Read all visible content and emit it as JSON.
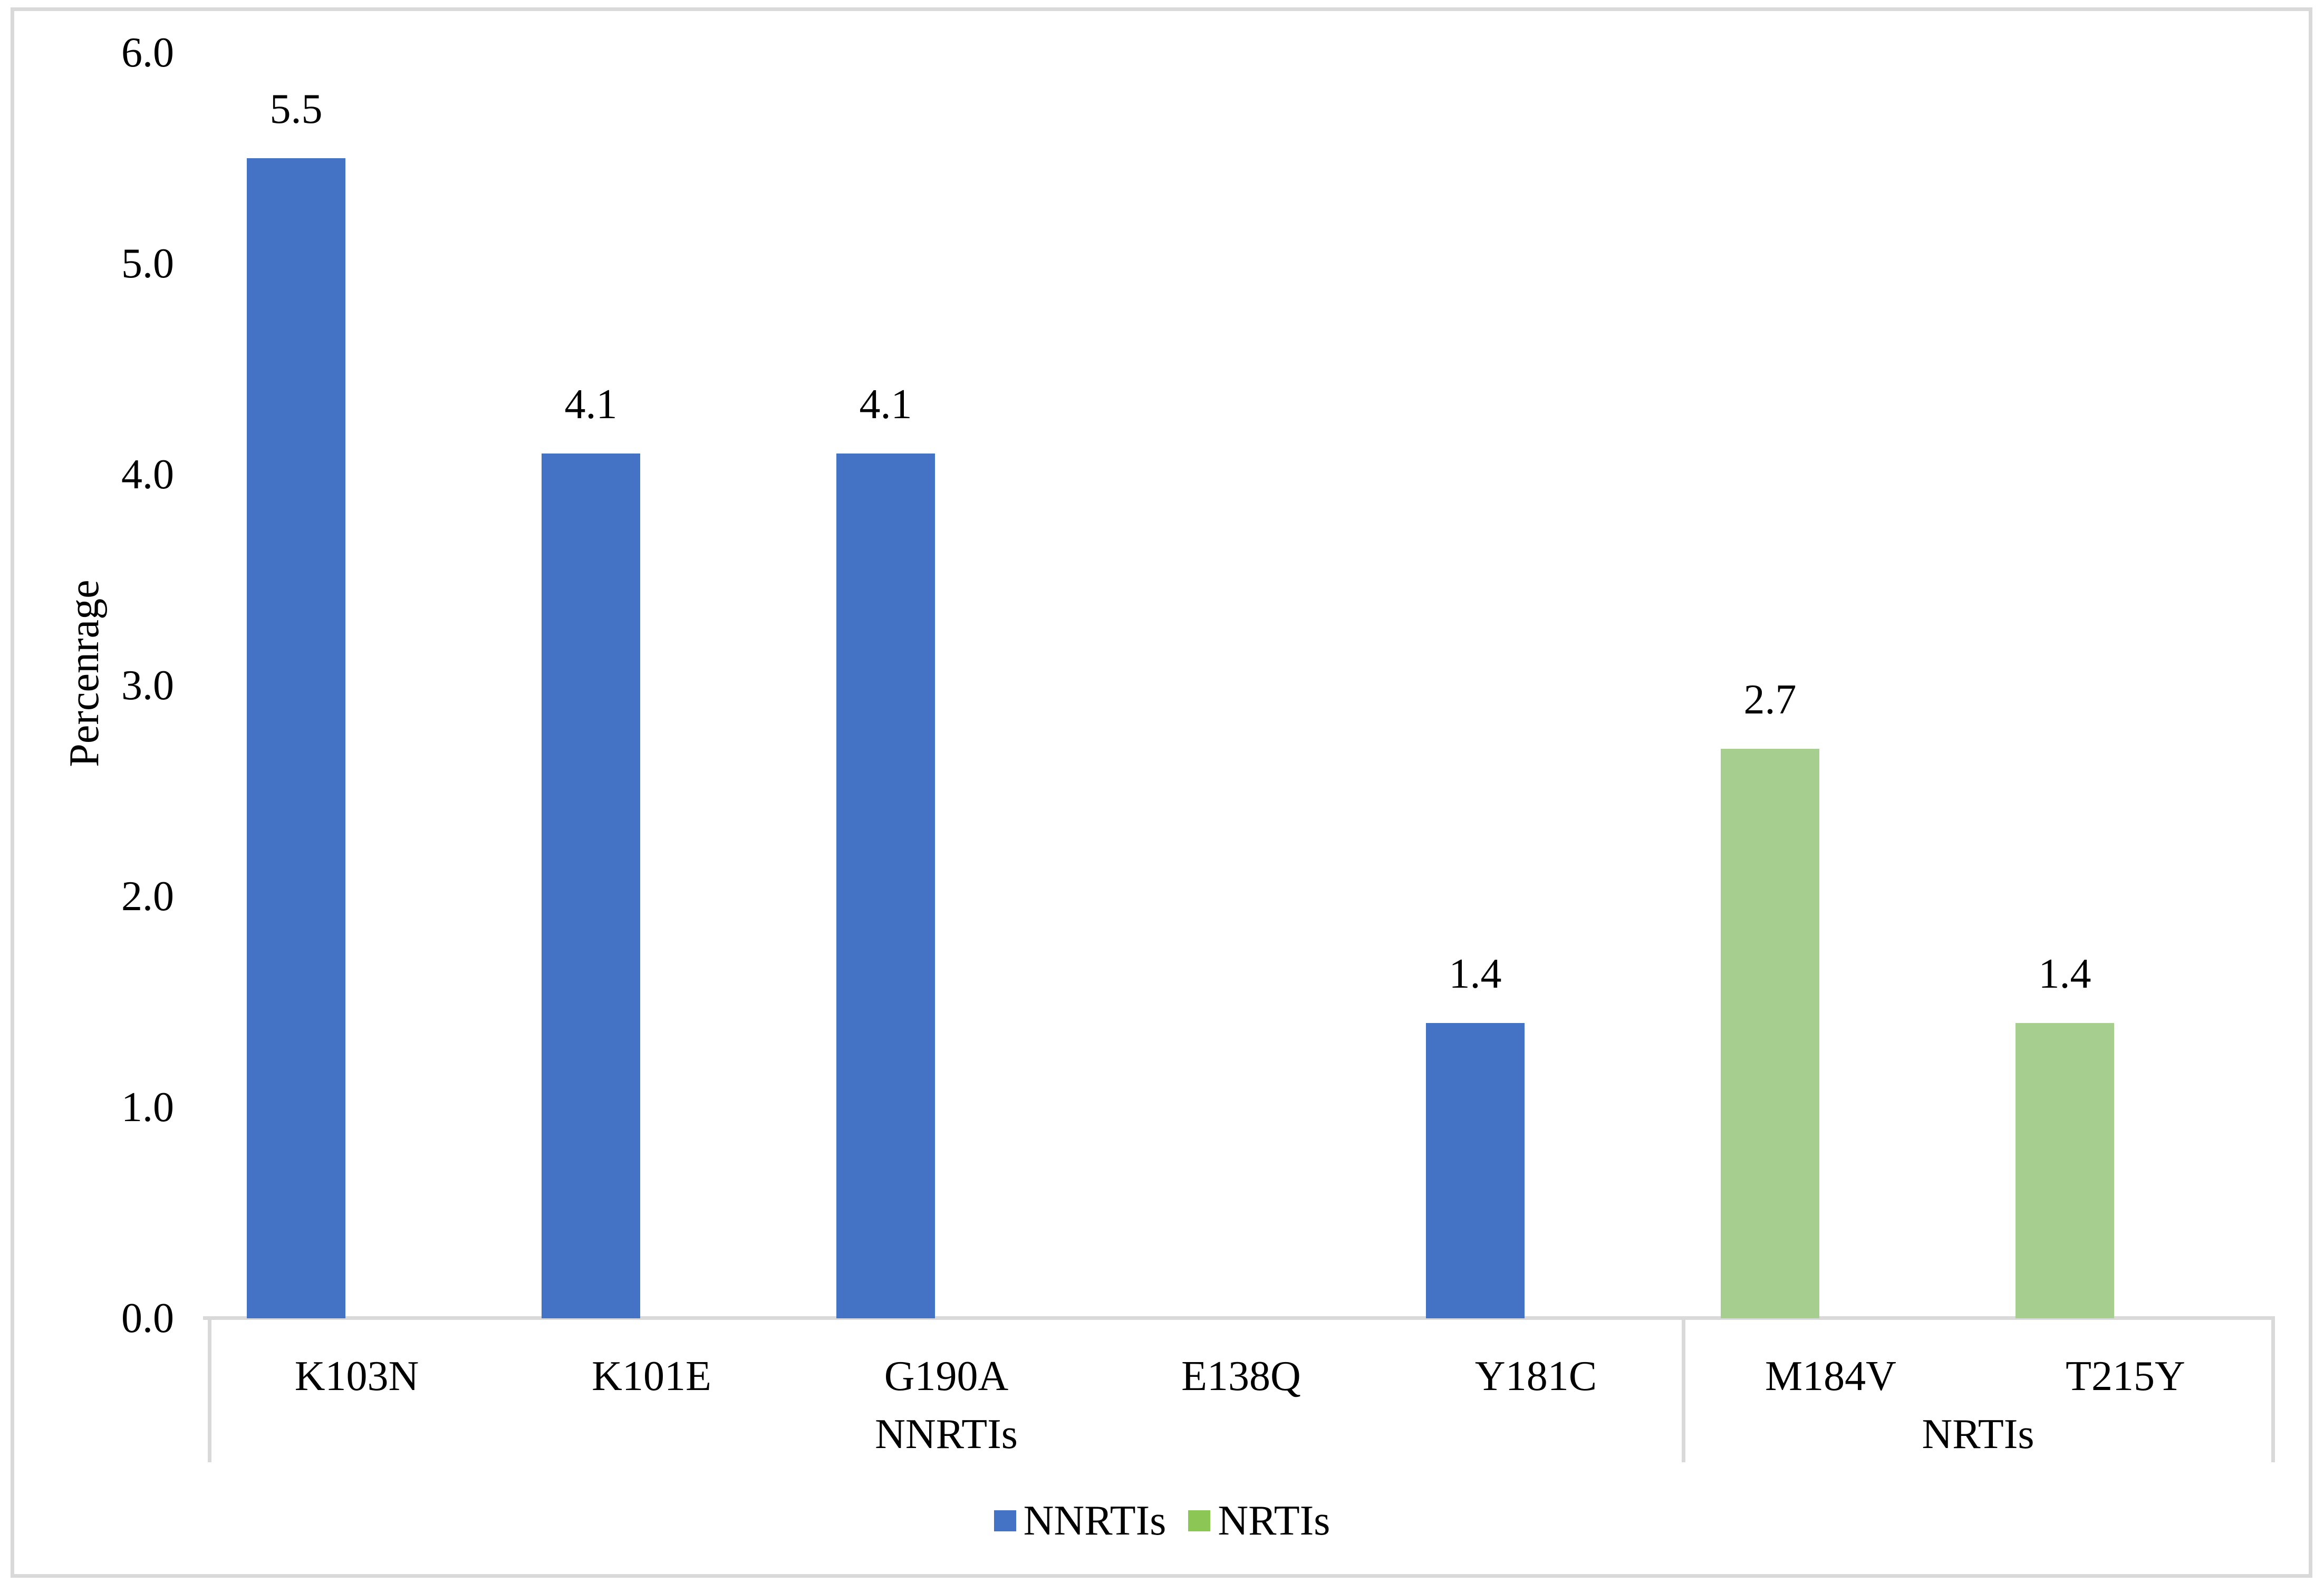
{
  "chart_data": {
    "type": "bar",
    "title": "",
    "xlabel": "",
    "ylabel": "Percenrage",
    "ylim": [
      0,
      6
    ],
    "ytick_interval": 1.0,
    "ytick_labels": [
      "0.0",
      "1.0",
      "2.0",
      "3.0",
      "4.0",
      "5.0",
      "6.0"
    ],
    "grid": false,
    "bar_value_labels_shown": true,
    "legend_position": "bottom-center",
    "axis_color": "#D9D9D9",
    "groups": [
      {
        "group_label": "NNRTIs",
        "bar_color": "#4472C4",
        "categories": [
          "K103N",
          "K101E",
          "G190A",
          "E138Q",
          "Y181C"
        ],
        "values": [
          5.5,
          4.1,
          4.1,
          0,
          1.4
        ],
        "value_labels": [
          "5.5",
          "4.1",
          "4.1",
          "",
          "1.4"
        ]
      },
      {
        "group_label": "NRTIs",
        "bar_color": "#A6CF8F",
        "categories": [
          "M184V",
          "T215Y"
        ],
        "values": [
          2.7,
          1.4
        ],
        "value_labels": [
          "2.7",
          "1.4"
        ]
      }
    ],
    "legend": [
      {
        "label": "NNRTIs",
        "color": "#4472C4"
      },
      {
        "label": "NRTIs",
        "color": "#8CC654"
      }
    ]
  },
  "frame": {
    "border_color": "#D9D9D9"
  }
}
